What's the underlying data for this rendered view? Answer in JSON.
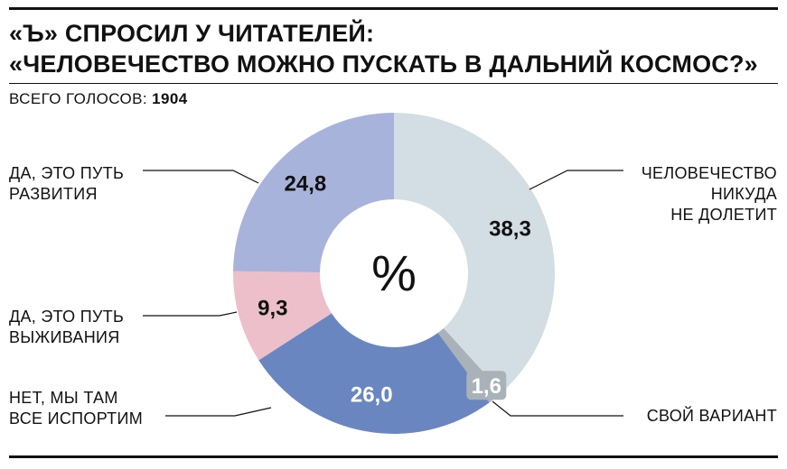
{
  "title": {
    "line1": "«Ъ» СПРОСИЛ У ЧИТАТЕЛЕЙ:",
    "line2": "«ЧЕЛОВЕЧЕСТВО МОЖНО ПУСКАТЬ В ДАЛЬНИЙ КОСМОС?»"
  },
  "votes": {
    "label": "ВСЕГО ГОЛОСОВ:",
    "value": "1904"
  },
  "center_label": "%",
  "chart_data": {
    "type": "pie",
    "style": "donut",
    "unit": "%",
    "slices": [
      {
        "label_lines": [
          "ЧЕЛОВЕЧЕСТВО",
          "НИКУДА",
          "НЕ ДОЛЕТИТ"
        ],
        "value": 38.3,
        "value_label": "38,3",
        "color": "#d3dde4"
      },
      {
        "label_lines": [
          "СВОЙ ВАРИАНТ"
        ],
        "value": 1.6,
        "value_label": "1,6",
        "color": "#a9b2b8"
      },
      {
        "label_lines": [
          "НЕТ, МЫ ТАМ",
          "ВСЕ ИСПОРТИМ"
        ],
        "value": 26.0,
        "value_label": "26,0",
        "color": "#6a86c1"
      },
      {
        "label_lines": [
          "ДА, ЭТО ПУТЬ",
          "ВЫЖИВАНИЯ"
        ],
        "value": 9.3,
        "value_label": "9,3",
        "color": "#ecbfcb"
      },
      {
        "label_lines": [
          "ДА, ЭТО ПУТЬ",
          "РАЗВИТИЯ"
        ],
        "value": 24.8,
        "value_label": "24,8",
        "color": "#a8b3dc"
      }
    ]
  }
}
